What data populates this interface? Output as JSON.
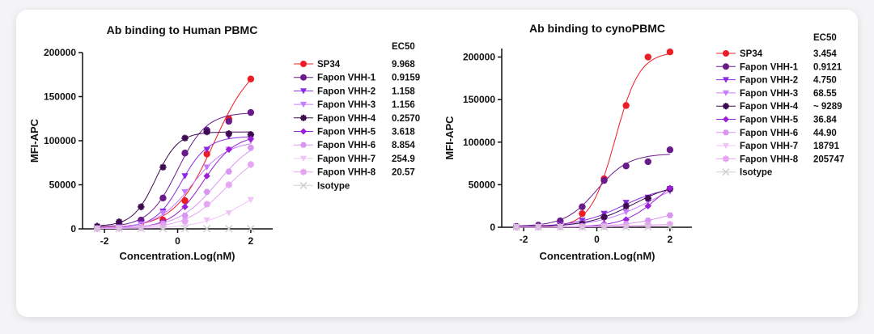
{
  "chart_data": [
    {
      "type": "scatter",
      "title": "Ab binding to Human PBMC",
      "xlabel": "Concentration.Log(nM)",
      "ylabel": "MFI-APC",
      "xlim": [
        -2.6,
        2.6
      ],
      "ylim": [
        0,
        200000
      ],
      "xticks": [
        -2,
        0,
        2
      ],
      "yticks": [
        0,
        50000,
        100000,
        150000,
        200000
      ],
      "legend_header": "EC50",
      "x": [
        -2.2,
        -1.6,
        -1.0,
        -0.4,
        0.2,
        0.8,
        1.4,
        2.0
      ],
      "series": [
        {
          "name": "SP34",
          "ec50": "9.968",
          "color": "#ee1c25",
          "marker": "circle",
          "values": [
            1000,
            1500,
            3000,
            10000,
            32000,
            85000,
            125000,
            170000
          ]
        },
        {
          "name": "Fapon VHH-1",
          "ec50": "0.9159",
          "color": "#6a1b8a",
          "marker": "circle",
          "values": [
            2000,
            5000,
            10000,
            35000,
            86000,
            112000,
            122000,
            132000
          ]
        },
        {
          "name": "Fapon VHH-2",
          "ec50": "1.158",
          "color": "#8a2be2",
          "marker": "triangle-down",
          "values": [
            1000,
            3000,
            6000,
            20000,
            60000,
            90000,
            105000,
            104000
          ]
        },
        {
          "name": "Fapon VHH-3",
          "ec50": "1.156",
          "color": "#c77dff",
          "marker": "triangle-down",
          "values": [
            800,
            2000,
            5000,
            18000,
            42000,
            70000,
            90000,
            100000
          ]
        },
        {
          "name": "Fapon VHH-4",
          "ec50": "0.2570",
          "color": "#3d0a4f",
          "marker": "star",
          "values": [
            3000,
            8000,
            25000,
            70000,
            103000,
            110000,
            108000,
            107000
          ]
        },
        {
          "name": "Fapon VHH-5",
          "ec50": "3.618",
          "color": "#9b1fd6",
          "marker": "diamond",
          "values": [
            500,
            1500,
            3000,
            8000,
            25000,
            60000,
            90000,
            102000
          ]
        },
        {
          "name": "Fapon VHH-6",
          "ec50": "8.854",
          "color": "#d896f0",
          "marker": "hexagon",
          "values": [
            500,
            1000,
            2500,
            6000,
            15000,
            42000,
            65000,
            92000
          ]
        },
        {
          "name": "Fapon VHH-7",
          "ec50": "254.9",
          "color": "#f0c4f7",
          "marker": "triangle-down",
          "values": [
            300,
            600,
            1000,
            2000,
            5000,
            10000,
            18000,
            33000
          ]
        },
        {
          "name": "Fapon VHH-8",
          "ec50": "20.57",
          "color": "#e6a5f2",
          "marker": "star",
          "values": [
            300,
            800,
            1500,
            3000,
            9000,
            28000,
            50000,
            73000
          ]
        },
        {
          "name": "Isotype",
          "ec50": "",
          "color": "#d0d0d0",
          "marker": "cross",
          "values": [
            200,
            200,
            200,
            200,
            200,
            200,
            200,
            200
          ]
        }
      ]
    },
    {
      "type": "scatter",
      "title": "Ab binding to cynoPBMC",
      "xlabel": "Concentration.Log(nM)",
      "ylabel": "MFI-APC",
      "xlim": [
        -2.6,
        2.6
      ],
      "ylim": [
        0,
        210000
      ],
      "xticks": [
        -2,
        0,
        2
      ],
      "yticks": [
        0,
        50000,
        100000,
        150000,
        200000
      ],
      "legend_header": "EC50",
      "x": [
        -2.2,
        -1.6,
        -1.0,
        -0.4,
        0.2,
        0.8,
        1.4,
        2.0
      ],
      "series": [
        {
          "name": "SP34",
          "ec50": "3.454",
          "color": "#ee1c25",
          "marker": "circle",
          "values": [
            500,
            1500,
            5000,
            16000,
            57000,
            143000,
            200000,
            206000
          ]
        },
        {
          "name": "Fapon VHH-1",
          "ec50": "0.9121",
          "color": "#6a1b8a",
          "marker": "circle",
          "values": [
            1000,
            2500,
            7500,
            24000,
            55000,
            72000,
            77000,
            91000
          ]
        },
        {
          "name": "Fapon VHH-2",
          "ec50": "4.750",
          "color": "#8a2be2",
          "marker": "triangle-down",
          "values": [
            500,
            1000,
            3000,
            8000,
            16000,
            29000,
            35000,
            45000
          ]
        },
        {
          "name": "Fapon VHH-3",
          "ec50": "68.55",
          "color": "#c77dff",
          "marker": "triangle-down",
          "values": [
            400,
            800,
            2000,
            5000,
            10000,
            18000,
            30000,
            42000
          ]
        },
        {
          "name": "Fapon VHH-4",
          "ec50": "~ 9289",
          "color": "#3d0a4f",
          "marker": "star",
          "values": [
            400,
            800,
            1500,
            4000,
            12000,
            25000,
            34000,
            45000
          ]
        },
        {
          "name": "Fapon VHH-5",
          "ec50": "36.84",
          "color": "#9b1fd6",
          "marker": "diamond",
          "values": [
            300,
            500,
            1000,
            2000,
            4000,
            9000,
            25000,
            46000
          ]
        },
        {
          "name": "Fapon VHH-6",
          "ec50": "44.90",
          "color": "#d896f0",
          "marker": "hexagon",
          "values": [
            200,
            400,
            600,
            1000,
            2000,
            4000,
            8000,
            14000
          ]
        },
        {
          "name": "Fapon VHH-7",
          "ec50": "18791",
          "color": "#f0c4f7",
          "marker": "triangle-down",
          "values": [
            200,
            300,
            400,
            500,
            700,
            1000,
            1500,
            2000
          ]
        },
        {
          "name": "Fapon VHH-8",
          "ec50": "205747",
          "color": "#e6a5f2",
          "marker": "star",
          "values": [
            200,
            300,
            500,
            800,
            1200,
            1800,
            2500,
            3500
          ]
        },
        {
          "name": "Isotype",
          "ec50": "",
          "color": "#d0d0d0",
          "marker": "cross",
          "values": [
            200,
            200,
            200,
            200,
            200,
            200,
            200,
            200
          ]
        }
      ]
    }
  ]
}
